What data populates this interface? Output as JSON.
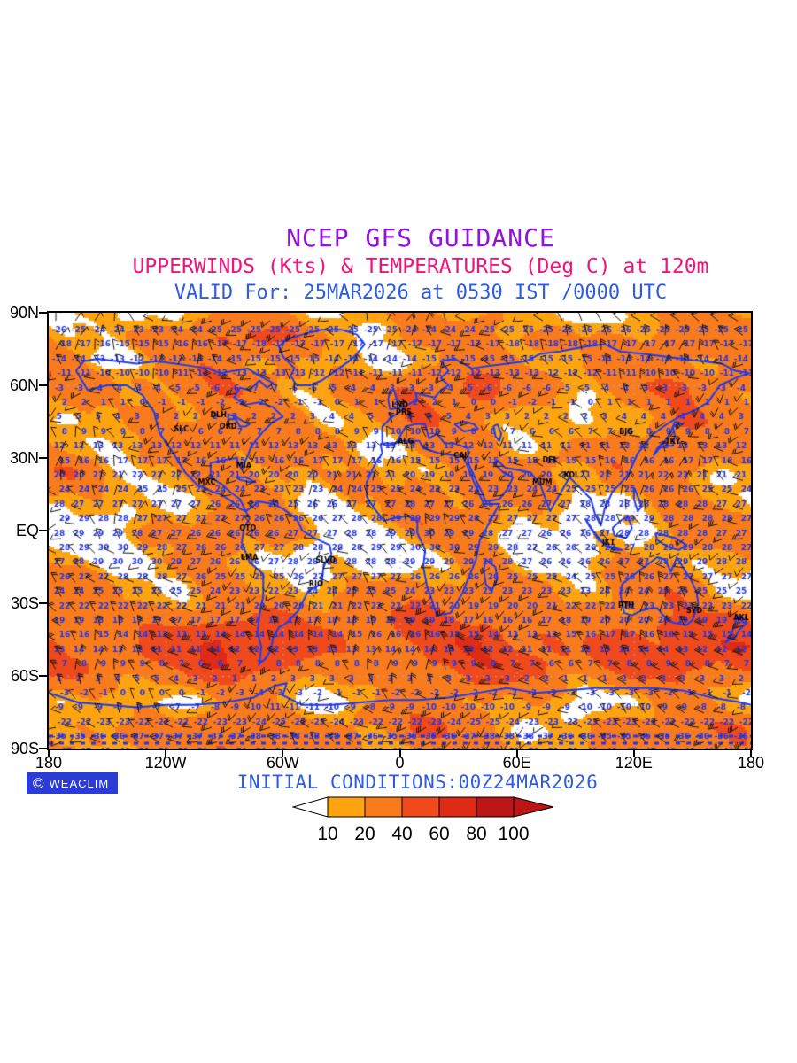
{
  "titles": {
    "line1": "NCEP GFS GUIDANCE",
    "line2": "UPPERWINDS (Kts) & TEMPERATURES (Deg C) at 120m",
    "line3": "VALID For: 25MAR2026 at 0530 IST /0000 UTC"
  },
  "footer": {
    "copyright_symbol": "©",
    "logo_text": "WEACLIM",
    "initial_conditions": "INITIAL CONDITIONS:00Z24MAR2026"
  },
  "colors": {
    "title1": "#9013E0",
    "title2": "#F0157D",
    "title3": "#2F5BE0",
    "axis_text": "#000000",
    "temp_text": "#2236E8",
    "coastline": "#1E3CF0",
    "wind_barb": "#151515",
    "gridline": "#A8A8A8",
    "logo_bg": "#2B3BD7",
    "logo_fg": "#FFFFFF",
    "legend_arrow_left": "#FFFFFF",
    "legend_arrow_right": "#BB1515"
  },
  "axes": {
    "yticks": [
      {
        "label": "90N",
        "lat": 90
      },
      {
        "label": "60N",
        "lat": 60
      },
      {
        "label": "30N",
        "lat": 30
      },
      {
        "label": "EQ",
        "lat": 0
      },
      {
        "label": "30S",
        "lat": -30
      },
      {
        "label": "60S",
        "lat": -60
      },
      {
        "label": "90S",
        "lat": -90
      }
    ],
    "xticks": [
      {
        "label": "180",
        "lon": -180
      },
      {
        "label": "120W",
        "lon": -120
      },
      {
        "label": "60W",
        "lon": -60
      },
      {
        "label": "0",
        "lon": 0
      },
      {
        "label": "60E",
        "lon": 60
      },
      {
        "label": "120E",
        "lon": 120
      },
      {
        "label": "180",
        "lon": 180
      }
    ]
  },
  "legend": {
    "values": [
      "10",
      "20",
      "40",
      "60",
      "80",
      "100"
    ],
    "colors": [
      "#FFA411",
      "#FA7B1C",
      "#F04A1C",
      "#DD2B15",
      "#BB1515"
    ]
  },
  "chart_data": {
    "type": "heatmap",
    "title": "NCEP GFS GUIDANCE",
    "subtitle": "UPPERWINDS (Kts) & TEMPERATURES (Deg C) at 120m",
    "valid_label": "VALID For: 25MAR2026 at 0530 IST /0000 UTC",
    "initial_conditions": "INITIAL CONDITIONS:00Z24MAR2026",
    "projection": "equirectangular",
    "lon_range": [
      -180,
      180
    ],
    "lat_range": [
      -90,
      90
    ],
    "xlabel_ticks": [
      "180",
      "120W",
      "60W",
      "0",
      "60E",
      "120E",
      "180"
    ],
    "ylabel_ticks": [
      "90N",
      "60N",
      "30N",
      "EQ",
      "30S",
      "60S",
      "90S"
    ],
    "legend_units": "Kts",
    "wind_speed_bins_kts": [
      10,
      20,
      40,
      60,
      80,
      100
    ],
    "wind_bin_colors": [
      "#FFA411",
      "#FA7B1C",
      "#F04A1C",
      "#DD2B15",
      "#BB1515"
    ],
    "below_min_color": "#FFFFFF",
    "mean_temp_degC_by_lat": [
      [
        90,
        -26
      ],
      [
        85,
        -24
      ],
      [
        80,
        -16
      ],
      [
        75,
        -15
      ],
      [
        70,
        -14
      ],
      [
        65,
        -8
      ],
      [
        60,
        -2
      ],
      [
        55,
        1
      ],
      [
        50,
        4
      ],
      [
        45,
        8
      ],
      [
        40,
        12
      ],
      [
        35,
        15
      ],
      [
        30,
        18
      ],
      [
        25,
        22
      ],
      [
        20,
        24
      ],
      [
        15,
        26
      ],
      [
        10,
        27
      ],
      [
        5,
        27
      ],
      [
        0,
        27
      ],
      [
        -5,
        28
      ],
      [
        -10,
        28
      ],
      [
        -15,
        27
      ],
      [
        -20,
        25
      ],
      [
        -25,
        23
      ],
      [
        -30,
        20
      ],
      [
        -35,
        17
      ],
      [
        -40,
        14
      ],
      [
        -45,
        12
      ],
      [
        -50,
        8
      ],
      [
        -55,
        4
      ],
      [
        -60,
        0
      ],
      [
        -65,
        -3
      ],
      [
        -70,
        -10
      ],
      [
        -75,
        -22
      ],
      [
        -80,
        -33
      ],
      [
        -85,
        -44
      ],
      [
        -90,
        -54
      ]
    ],
    "mean_wind_kts_by_lat": [
      [
        90,
        24
      ],
      [
        80,
        26
      ],
      [
        70,
        18
      ],
      [
        60,
        24
      ],
      [
        50,
        28
      ],
      [
        40,
        26
      ],
      [
        30,
        28
      ],
      [
        25,
        22
      ],
      [
        20,
        17
      ],
      [
        15,
        14
      ],
      [
        10,
        15
      ],
      [
        5,
        16
      ],
      [
        0,
        15
      ],
      [
        -5,
        16
      ],
      [
        -10,
        17
      ],
      [
        -15,
        19
      ],
      [
        -20,
        21
      ],
      [
        -25,
        23
      ],
      [
        -30,
        26
      ],
      [
        -35,
        30
      ],
      [
        -40,
        36
      ],
      [
        -45,
        42
      ],
      [
        -50,
        46
      ],
      [
        -55,
        46
      ],
      [
        -60,
        36
      ],
      [
        -65,
        28
      ],
      [
        -70,
        22
      ],
      [
        -75,
        24
      ],
      [
        -80,
        24
      ],
      [
        -85,
        22
      ],
      [
        -90,
        20
      ]
    ],
    "station_labels": [
      {
        "code": "DLH",
        "lon": -93,
        "lat": 47
      },
      {
        "code": "ORD",
        "lon": -88,
        "lat": 42
      },
      {
        "code": "SLC",
        "lon": -112,
        "lat": 41
      },
      {
        "code": "MIA",
        "lon": -80,
        "lat": 26
      },
      {
        "code": "MXC",
        "lon": -99,
        "lat": 19
      },
      {
        "code": "QTO",
        "lon": -78,
        "lat": 0
      },
      {
        "code": "LMA",
        "lon": -77,
        "lat": -12
      },
      {
        "code": "SLVD",
        "lon": -38,
        "lat": -13
      },
      {
        "code": "RIO",
        "lon": -43,
        "lat": -23
      },
      {
        "code": "LND",
        "lon": 0,
        "lat": 51
      },
      {
        "code": "PRS",
        "lon": 2,
        "lat": 48
      },
      {
        "code": "ALG",
        "lon": 3,
        "lat": 36
      },
      {
        "code": "CAI",
        "lon": 31,
        "lat": 30
      },
      {
        "code": "MUM",
        "lon": 73,
        "lat": 19
      },
      {
        "code": "DEL",
        "lon": 77,
        "lat": 28
      },
      {
        "code": "KOL",
        "lon": 88,
        "lat": 22
      },
      {
        "code": "BJG",
        "lon": 116,
        "lat": 40
      },
      {
        "code": "TKY",
        "lon": 140,
        "lat": 36
      },
      {
        "code": "JKT",
        "lon": 107,
        "lat": -6
      },
      {
        "code": "PTH",
        "lon": 116,
        "lat": -32
      },
      {
        "code": "SYD",
        "lon": 151,
        "lat": -34
      },
      {
        "code": "AKL",
        "lon": 175,
        "lat": -37
      }
    ]
  }
}
